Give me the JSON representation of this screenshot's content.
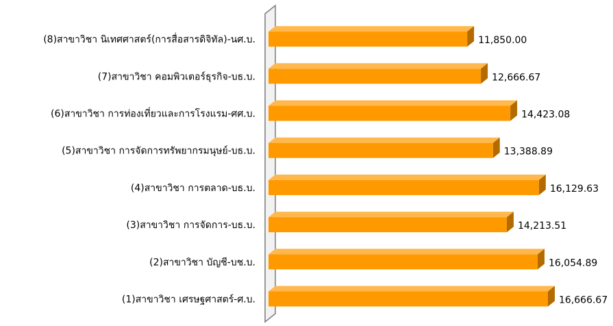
{
  "chart_data": {
    "type": "bar",
    "orientation": "horizontal",
    "style": "3d",
    "categories": [
      "(8)สาขาวิชา นิเทศศาสตร์(การสื่อสารดิจิทัล)-นศ.บ.",
      "(7)สาขาวิชา คอมพิวเตอร์ธุรกิจ-บธ.บ.",
      "(6)สาขาวิชา การท่องเที่ยวและการโรงแรม-ศศ.บ.",
      "(5)สาขาวิชา การจัดการทรัพยากรมนุษย์-บธ.บ.",
      "(4)สาขาวิชา การตลาด-บธ.บ.",
      "(3)สาขาวิชา การจัดการ-บธ.บ.",
      "(2)สาขาวิชา บัญชี-บช.บ.",
      "(1)สาขาวิชา เศรษฐศาสตร์-ศ.บ."
    ],
    "values": [
      11850.0,
      12666.67,
      14423.08,
      13388.89,
      16129.63,
      14213.51,
      16054.89,
      16666.67
    ],
    "value_labels": [
      "11,850.00",
      "12,666.67",
      "14,423.08",
      "13,388.89",
      "16,129.63",
      "14,213.51",
      "16,054.89",
      "16,666.67"
    ],
    "xlim": [
      0,
      17000
    ],
    "title": "",
    "xlabel": "",
    "ylabel": "",
    "grid": false,
    "legend": "none",
    "colors": {
      "bar_front": "#FF9900",
      "bar_top": "#FFB84D",
      "bar_side": "#B36B00",
      "axis_wall": "#808080",
      "axis_wall_fill": "#F2F2F2"
    }
  }
}
